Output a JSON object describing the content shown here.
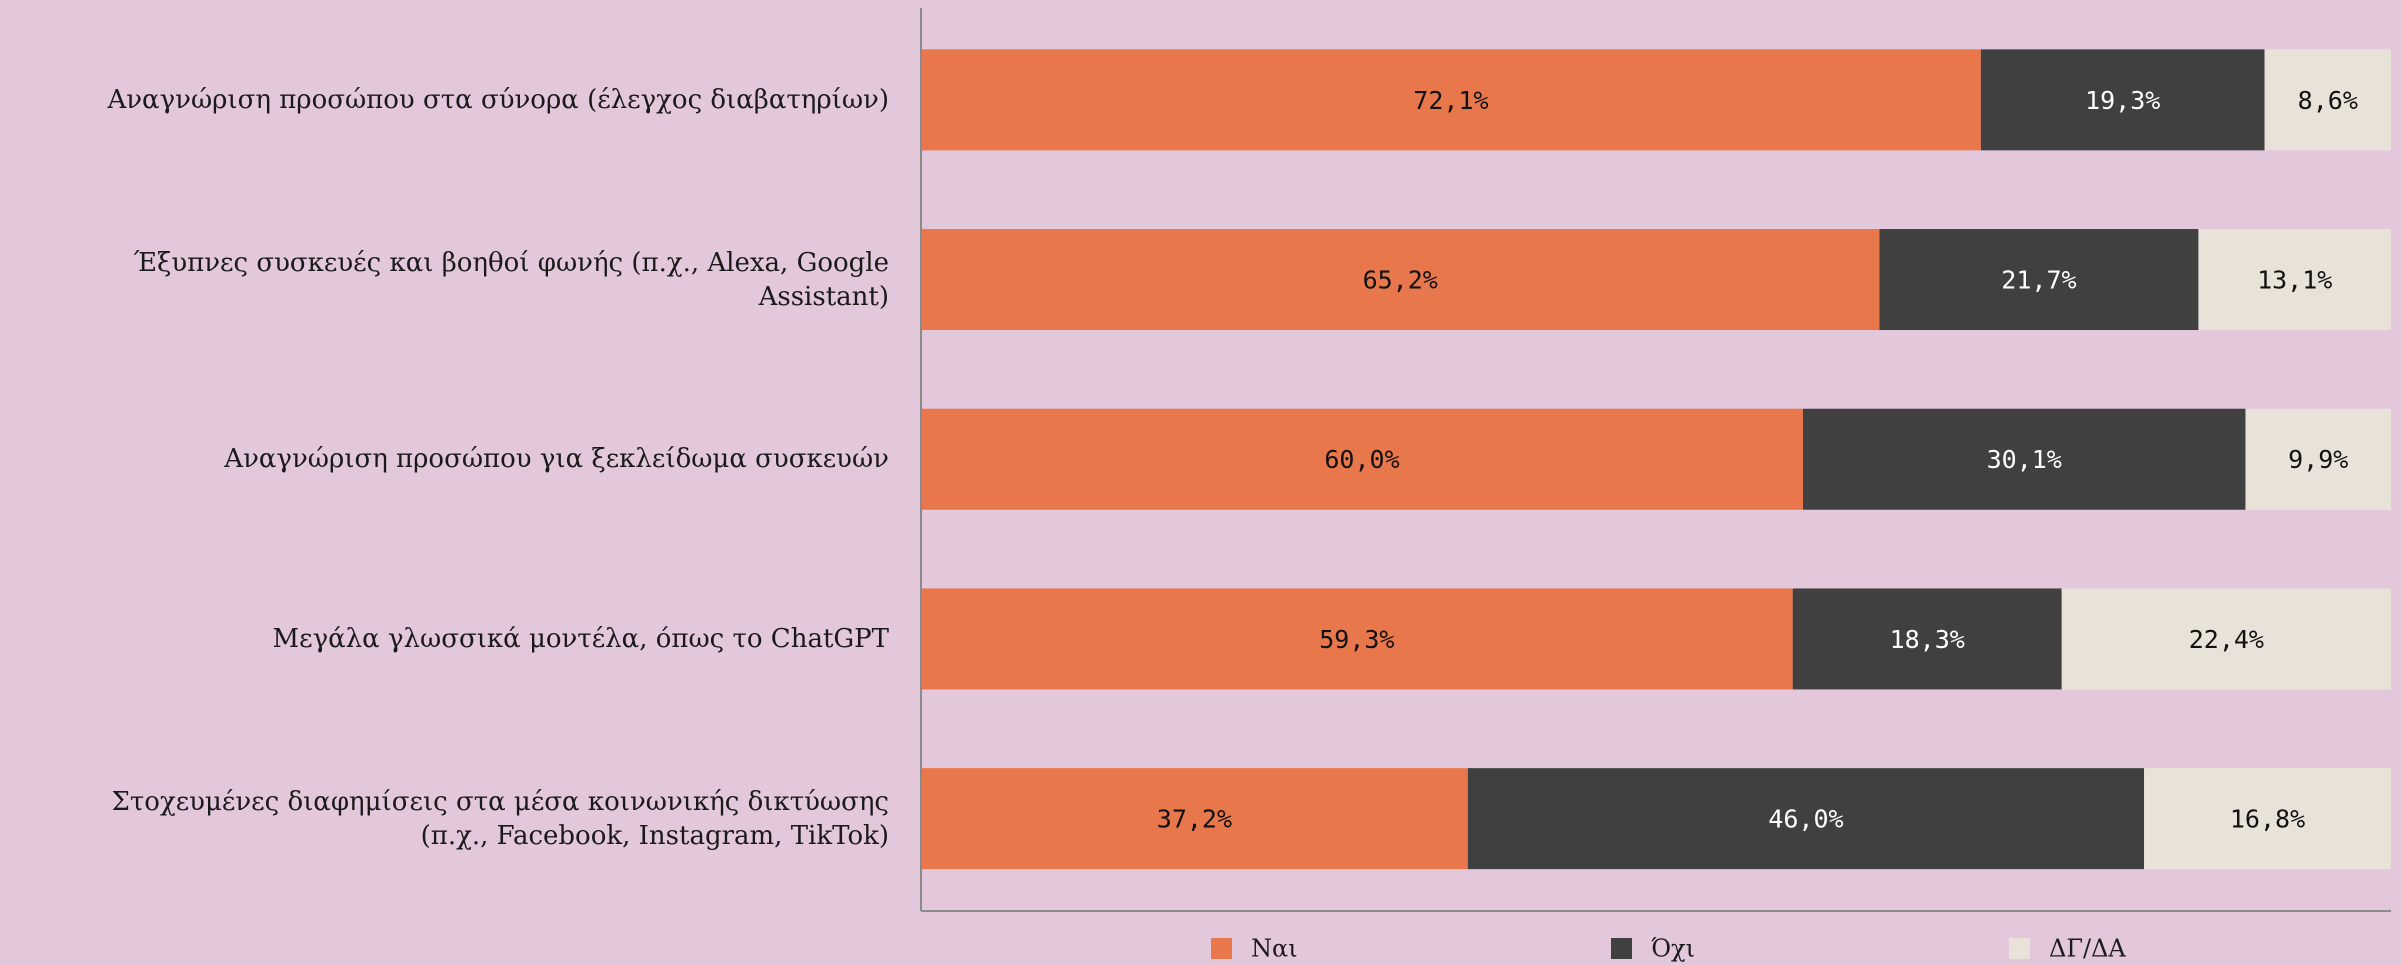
{
  "chart_data": {
    "type": "stacked_barh",
    "categories": [
      "Αναγνώριση προσώπου στα σύνορα (έλεγχος διαβατηρίων)",
      "Έξυπνες συσκευές και βοηθοί φωνής (π.χ., Alexa, Google Assistant)",
      "Αναγνώριση προσώπου για ξεκλείδωμα συσκευών",
      "Μεγάλα γλωσσικά μοντέλα, όπως το ChatGPT",
      "Στοχευμένες διαφημίσεις στα μέσα κοινωνικής δικτύωσης\n(π.χ., Facebook, Instagram, TikTok)"
    ],
    "series": [
      {
        "name": "Ναι",
        "color": "#e8774c",
        "values": [
          72.1,
          65.2,
          60.0,
          59.3,
          37.2
        ],
        "value_labels": [
          "72,1%",
          "65,2%",
          "60,0%",
          "59,3%",
          "37,2%"
        ]
      },
      {
        "name": "Όχι",
        "color": "#404040",
        "values": [
          19.3,
          21.7,
          30.1,
          18.3,
          46.0
        ],
        "value_labels": [
          "19,3%",
          "21,7%",
          "30,1%",
          "18,3%",
          "46,0%"
        ]
      },
      {
        "name": "ΔΓ/ΔΑ",
        "color": "#e8e2d8",
        "values": [
          8.6,
          13.1,
          9.9,
          22.4,
          16.8
        ],
        "value_labels": [
          "8,6%",
          "13,1%",
          "9,9%",
          "22,4%",
          "16,8%"
        ]
      }
    ],
    "xlim": [
      0,
      100
    ],
    "legend": "bottom"
  }
}
